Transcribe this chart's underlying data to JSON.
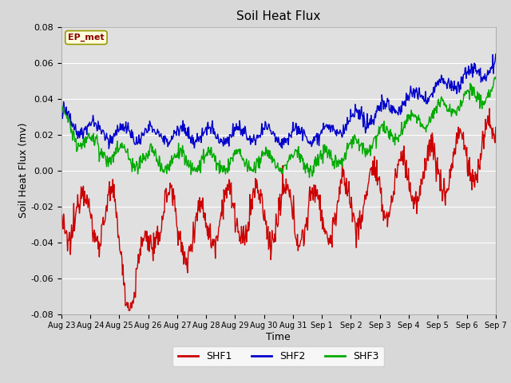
{
  "title": "Soil Heat Flux",
  "xlabel": "Time",
  "ylabel": "Soil Heat Flux (mv)",
  "ylim": [
    -0.08,
    0.08
  ],
  "annotation": "EP_met",
  "background_color": "#d8d8d8",
  "plot_bg_color": "#e0e0e0",
  "shf1_color": "#cc0000",
  "shf2_color": "#0000cc",
  "shf3_color": "#00aa00",
  "legend_labels": [
    "SHF1",
    "SHF2",
    "SHF3"
  ],
  "tick_labels": [
    "Aug 23",
    "Aug 24",
    "Aug 25",
    "Aug 26",
    "Aug 27",
    "Aug 28",
    "Aug 29",
    "Aug 30",
    "Aug 31",
    "Sep 1",
    "Sep 2",
    "Sep 3",
    "Sep 4",
    "Sep 5",
    "Sep 6",
    "Sep 7"
  ],
  "n_days": 16,
  "points_per_day": 48
}
